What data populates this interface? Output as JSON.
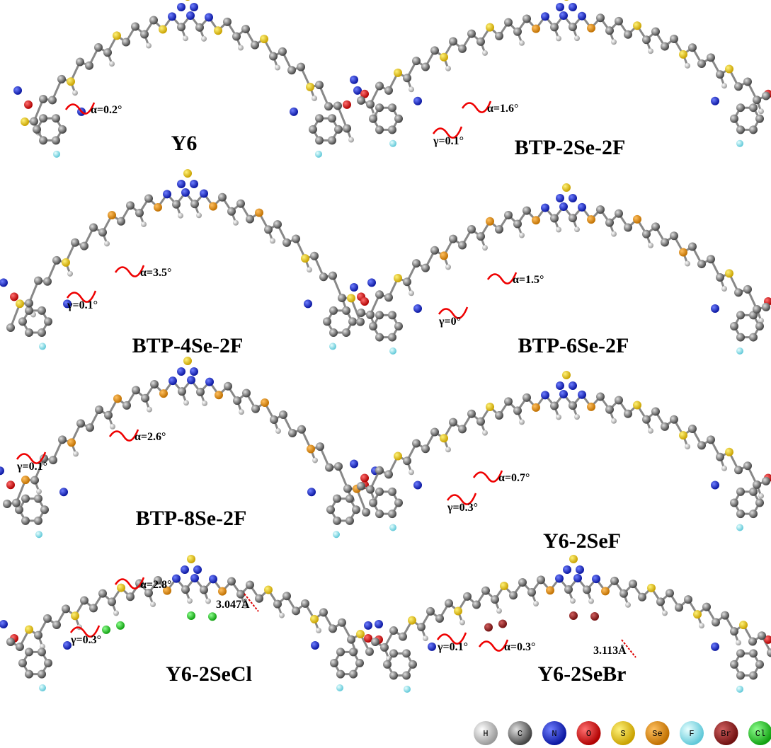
{
  "panels": [
    {
      "name": "Y6",
      "annotations": [
        "α=0.2°"
      ]
    },
    {
      "name": "BTP-2Se-2F",
      "annotations": [
        "α=1.6°",
        "γ=0.1°"
      ]
    },
    {
      "name": "BTP-4Se-2F",
      "annotations": [
        "α=3.5°",
        "γ=0.1°"
      ]
    },
    {
      "name": "BTP-6Se-2F",
      "annotations": [
        "α=1.5°",
        "γ=0°"
      ]
    },
    {
      "name": "BTP-8Se-2F",
      "annotations": [
        "α=2.6°",
        "γ=0.1°"
      ]
    },
    {
      "name": "Y6-2SeF",
      "annotations": [
        "α=0.7°",
        "γ=0.3°"
      ]
    },
    {
      "name": "Y6-2SeCl",
      "annotations": [
        "α=2.8°",
        "γ=0.3°",
        "3.047Å"
      ]
    },
    {
      "name": "Y6-2SeBr",
      "annotations": [
        "α=0.3°",
        "γ=0.1°",
        "3.113Å"
      ]
    }
  ],
  "legend": [
    "H",
    "C",
    "N",
    "O",
    "S",
    "Se",
    "F",
    "Br",
    "Cl"
  ]
}
